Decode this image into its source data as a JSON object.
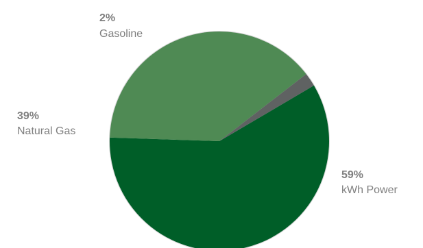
{
  "chart_data": {
    "type": "pie",
    "slices": [
      {
        "label": "kWh Power",
        "percent_label": "59%",
        "value": 59,
        "color": "#005e28"
      },
      {
        "label": "Natural Gas",
        "percent_label": "39%",
        "value": 39,
        "color": "#4f8a54"
      },
      {
        "label": "Gasoline",
        "percent_label": "2%",
        "value": 2,
        "color": "#5f6262"
      }
    ],
    "border_color": "#d6d6d6"
  }
}
